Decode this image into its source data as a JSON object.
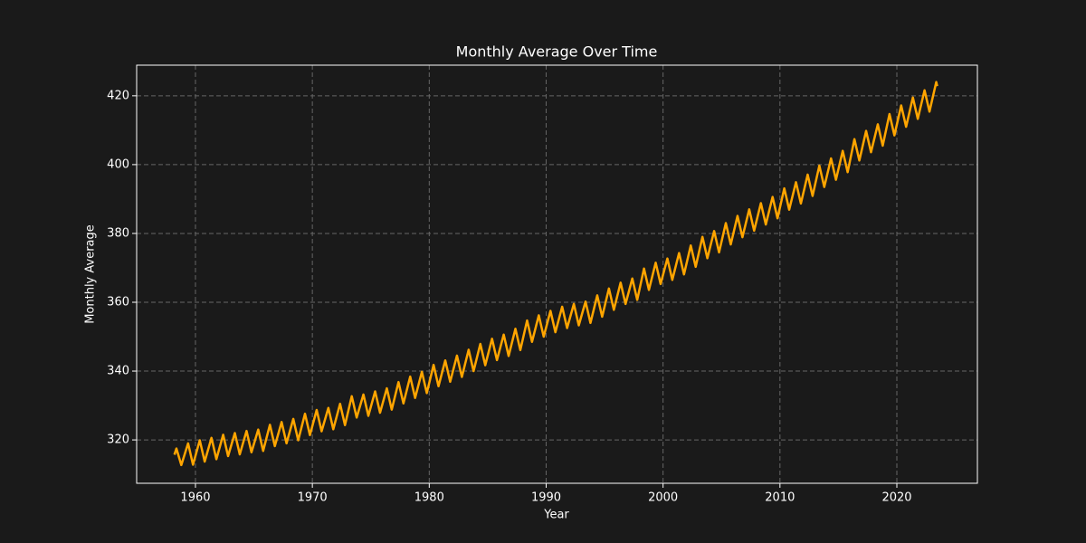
{
  "chart_data": {
    "type": "line",
    "title": "Monthly Average Over Time",
    "x_label": "Year",
    "y_label": "Monthly Average",
    "x": [
      1958.2,
      1958.37,
      1958.79,
      1959.37,
      1959.79,
      1960.37,
      1960.79,
      1961.37,
      1961.79,
      1962.37,
      1962.79,
      1963.37,
      1963.79,
      1964.37,
      1964.79,
      1965.37,
      1965.79,
      1966.37,
      1966.79,
      1967.37,
      1967.79,
      1968.37,
      1968.79,
      1969.37,
      1969.79,
      1970.37,
      1970.79,
      1971.37,
      1971.79,
      1972.37,
      1972.79,
      1973.37,
      1973.79,
      1974.37,
      1974.79,
      1975.37,
      1975.79,
      1976.37,
      1976.79,
      1977.37,
      1977.79,
      1978.37,
      1978.79,
      1979.37,
      1979.79,
      1980.37,
      1980.79,
      1981.37,
      1981.79,
      1982.37,
      1982.79,
      1983.37,
      1983.79,
      1984.37,
      1984.79,
      1985.37,
      1985.79,
      1986.37,
      1986.79,
      1987.37,
      1987.79,
      1988.37,
      1988.79,
      1989.37,
      1989.79,
      1990.37,
      1990.79,
      1991.37,
      1991.79,
      1992.37,
      1992.79,
      1993.37,
      1993.79,
      1994.37,
      1994.79,
      1995.37,
      1995.79,
      1996.37,
      1996.79,
      1997.37,
      1997.79,
      1998.37,
      1998.79,
      1999.37,
      1999.79,
      2000.37,
      2000.79,
      2001.37,
      2001.79,
      2002.37,
      2002.79,
      2003.37,
      2003.79,
      2004.37,
      2004.79,
      2005.37,
      2005.79,
      2006.37,
      2006.79,
      2007.37,
      2007.79,
      2008.37,
      2008.79,
      2009.37,
      2009.79,
      2010.37,
      2010.79,
      2011.37,
      2011.79,
      2012.37,
      2012.79,
      2013.37,
      2013.79,
      2014.37,
      2014.79,
      2015.37,
      2015.79,
      2016.37,
      2016.79,
      2017.37,
      2017.79,
      2018.37,
      2018.79,
      2019.37,
      2019.79,
      2020.37,
      2020.79,
      2021.37,
      2021.79,
      2022.37,
      2022.79,
      2023.37,
      2023.45
    ],
    "values": [
      315.7,
      317.5,
      312.7,
      319.0,
      312.8,
      319.9,
      313.7,
      320.6,
      314.4,
      321.5,
      315.3,
      322.0,
      315.8,
      322.6,
      316.4,
      323.0,
      316.8,
      324.4,
      318.2,
      325.2,
      319.0,
      326.1,
      319.9,
      327.6,
      321.4,
      328.7,
      322.5,
      329.3,
      323.1,
      330.5,
      324.3,
      332.7,
      326.5,
      333.2,
      327.0,
      334.1,
      327.9,
      335.0,
      328.8,
      336.8,
      330.6,
      338.4,
      332.2,
      339.8,
      333.6,
      341.8,
      335.6,
      343.1,
      336.9,
      344.5,
      338.3,
      346.2,
      340.0,
      347.9,
      341.7,
      349.4,
      343.2,
      350.6,
      344.4,
      352.3,
      346.1,
      354.7,
      348.5,
      356.2,
      350.0,
      357.5,
      351.3,
      358.7,
      352.5,
      359.5,
      353.3,
      360.2,
      354.0,
      362.0,
      355.8,
      364.0,
      357.8,
      365.7,
      359.5,
      366.9,
      360.7,
      369.8,
      363.6,
      371.5,
      365.3,
      372.7,
      366.5,
      374.3,
      368.1,
      376.5,
      370.3,
      379.0,
      372.8,
      380.7,
      374.5,
      383.0,
      376.8,
      385.1,
      378.9,
      387.0,
      380.8,
      388.8,
      382.6,
      390.6,
      384.4,
      393.1,
      386.9,
      394.9,
      388.7,
      397.1,
      390.9,
      399.7,
      393.5,
      401.8,
      395.6,
      404.0,
      397.8,
      407.4,
      401.2,
      409.8,
      403.6,
      411.7,
      405.5,
      414.7,
      408.5,
      417.2,
      411.0,
      419.5,
      413.3,
      421.6,
      415.4,
      424.0,
      422.8
    ],
    "color": "#ffa500",
    "xlim": [
      1954.97,
      2026.89
    ],
    "xticks": [
      1960,
      1970,
      1980,
      1990,
      2000,
      2010,
      2020
    ],
    "ylim": [
      307.4,
      428.9
    ],
    "yticks": [
      320,
      340,
      360,
      380,
      400,
      420
    ],
    "grid": true
  }
}
